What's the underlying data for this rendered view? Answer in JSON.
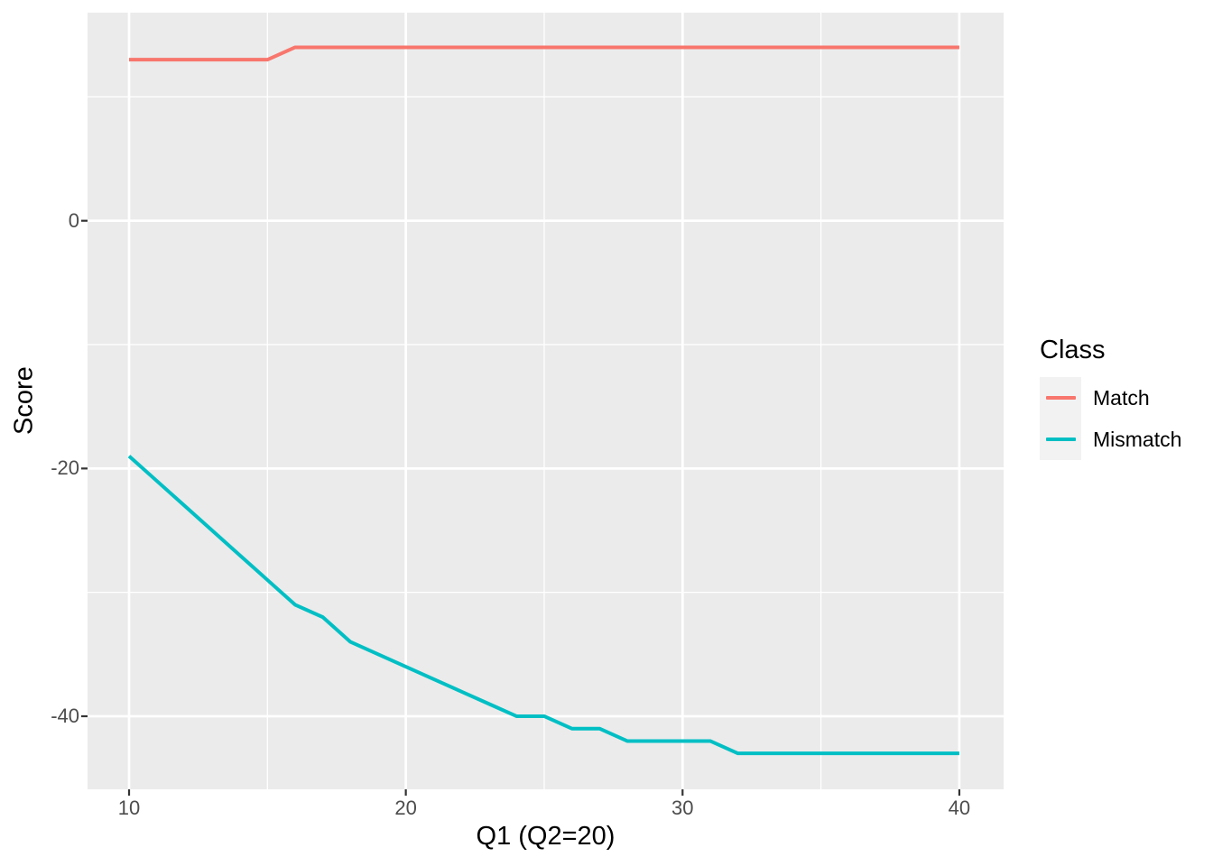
{
  "chart_data": {
    "type": "line",
    "title": "",
    "xlabel": "Q1 (Q2=20)",
    "ylabel": "Score",
    "grid": true,
    "legend": {
      "title": "Class",
      "position": "right",
      "entries": [
        {
          "label": "Match",
          "color": "#F8766D"
        },
        {
          "label": "Mismatch",
          "color": "#00BFC4"
        }
      ]
    },
    "x": [
      10,
      11,
      12,
      13,
      14,
      15,
      16,
      17,
      18,
      19,
      20,
      21,
      22,
      23,
      24,
      25,
      26,
      27,
      28,
      29,
      30,
      31,
      32,
      33,
      34,
      35,
      36,
      37,
      38,
      39,
      40
    ],
    "series": [
      {
        "name": "Match",
        "color": "#F8766D",
        "values": [
          13,
          13,
          13,
          13,
          13,
          13,
          14,
          14,
          14,
          14,
          14,
          14,
          14,
          14,
          14,
          14,
          14,
          14,
          14,
          14,
          14,
          14,
          14,
          14,
          14,
          14,
          14,
          14,
          14,
          14,
          14
        ]
      },
      {
        "name": "Mismatch",
        "color": "#00BFC4",
        "values": [
          -19,
          -21,
          -23,
          -25,
          -27,
          -29,
          -31,
          -32,
          -34,
          -35,
          -36,
          -37,
          -38,
          -39,
          -40,
          -40,
          -41,
          -41,
          -42,
          -42,
          -42,
          -42,
          -43,
          -43,
          -43,
          -43,
          -43,
          -43,
          -43,
          -43,
          -43
        ]
      }
    ],
    "axes": {
      "x": {
        "ticks_major": [
          10,
          20,
          30,
          40
        ],
        "ticks_minor": [
          15,
          25,
          35
        ],
        "range": [
          8.5,
          41.6
        ]
      },
      "y": {
        "ticks_major": [
          0,
          -20,
          -40
        ],
        "ticks_minor": [
          10,
          -10,
          -30
        ],
        "range": [
          -45.9,
          16.8
        ]
      }
    },
    "style": {
      "panel_bg": "#EBEBEB",
      "grid_color": "#FFFFFF",
      "tick_color": "#333333",
      "tick_label_color": "#4D4D4D",
      "title_color": "#000000",
      "legend_key_bg": "#F2F2F2",
      "line_width": 4
    }
  }
}
